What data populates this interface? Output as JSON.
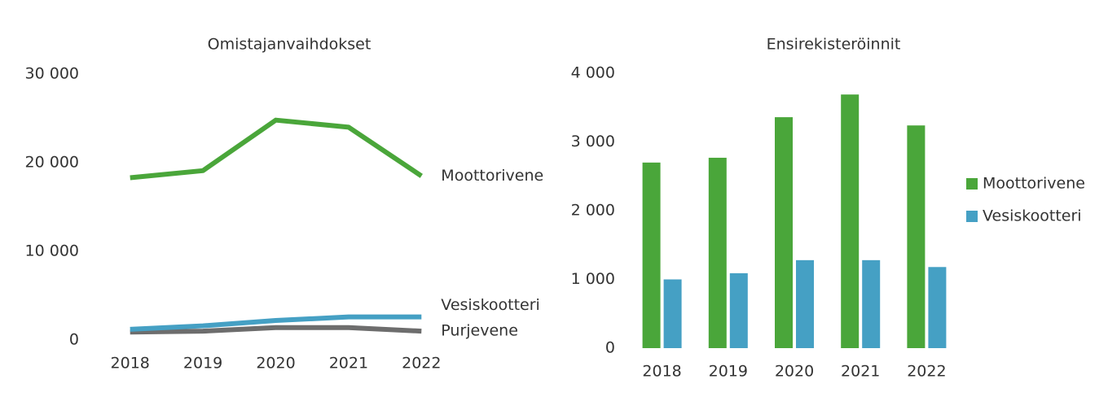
{
  "chart_data": [
    {
      "type": "line",
      "title": "Omistajanvaihdokset",
      "x": [
        "2018",
        "2019",
        "2020",
        "2021",
        "2022"
      ],
      "series": [
        {
          "name": "Moottorivene",
          "color": "#4aa63a",
          "values": [
            18300,
            19100,
            24800,
            24000,
            18500
          ]
        },
        {
          "name": "Vesiskootteri",
          "color": "#45a0c4",
          "values": [
            1200,
            1600,
            2200,
            2600,
            2600
          ]
        },
        {
          "name": "Purjevene",
          "color": "#6d6d6d",
          "values": [
            900,
            1000,
            1400,
            1400,
            1000
          ]
        }
      ],
      "ylim": [
        0,
        30000
      ],
      "yticks": [
        0,
        {
          "value": 10000,
          "label": "10 000"
        },
        {
          "value": 20000,
          "label": "20 000"
        },
        {
          "value": 30000,
          "label": "30 000"
        }
      ]
    },
    {
      "type": "bar",
      "title": "Ensirekisteröinnit",
      "categories": [
        "2018",
        "2019",
        "2020",
        "2021",
        "2022"
      ],
      "series": [
        {
          "name": "Moottorivene",
          "color": "#4aa63a",
          "values": [
            2700,
            2770,
            3360,
            3690,
            3240
          ]
        },
        {
          "name": "Vesiskootteri",
          "color": "#45a0c4",
          "values": [
            1000,
            1090,
            1280,
            1280,
            1180
          ]
        }
      ],
      "ylim": [
        0,
        4000
      ],
      "yticks": [
        0,
        {
          "value": 1000,
          "label": "1 000"
        },
        {
          "value": 2000,
          "label": "2 000"
        },
        {
          "value": 3000,
          "label": "3 000"
        },
        {
          "value": 4000,
          "label": "4 000"
        }
      ],
      "legend": "right"
    }
  ]
}
